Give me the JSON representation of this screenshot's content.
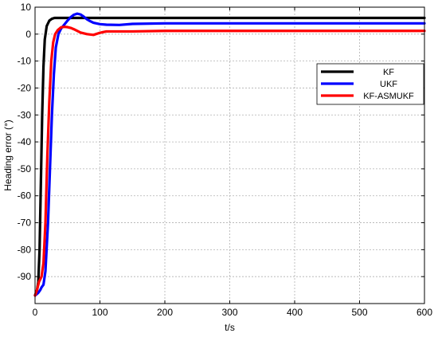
{
  "chart_data": {
    "type": "line",
    "title": "",
    "xlabel": "t/s",
    "ylabel": "Heading error (°)",
    "xlim": [
      0,
      600
    ],
    "ylim": [
      -100,
      10
    ],
    "xticks": [
      0,
      100,
      200,
      300,
      400,
      500,
      600
    ],
    "yticks": [
      10,
      0,
      -10,
      -20,
      -30,
      -40,
      -50,
      -60,
      -70,
      -80,
      -90
    ],
    "grid": true,
    "legend_position": "upper-right",
    "series": [
      {
        "name": "KF",
        "color": "#000000",
        "points": [
          [
            0,
            -97
          ],
          [
            3,
            -95
          ],
          [
            5,
            -92
          ],
          [
            7,
            -80
          ],
          [
            9,
            -55
          ],
          [
            11,
            -30
          ],
          [
            13,
            -12
          ],
          [
            15,
            -2
          ],
          [
            18,
            3
          ],
          [
            22,
            5
          ],
          [
            26,
            5.7
          ],
          [
            30,
            6
          ],
          [
            60,
            6
          ],
          [
            100,
            6
          ],
          [
            200,
            6
          ],
          [
            300,
            6
          ],
          [
            400,
            6
          ],
          [
            500,
            6
          ],
          [
            600,
            6
          ]
        ]
      },
      {
        "name": "UKF",
        "color": "#0000ff",
        "points": [
          [
            0,
            -97
          ],
          [
            5,
            -96
          ],
          [
            8,
            -95
          ],
          [
            10,
            -94
          ],
          [
            13,
            -93
          ],
          [
            16,
            -88
          ],
          [
            20,
            -70
          ],
          [
            23,
            -50
          ],
          [
            26,
            -30
          ],
          [
            29,
            -15
          ],
          [
            32,
            -5
          ],
          [
            36,
            0
          ],
          [
            40,
            2
          ],
          [
            45,
            3.5
          ],
          [
            50,
            5
          ],
          [
            55,
            6.3
          ],
          [
            60,
            7.2
          ],
          [
            65,
            7.6
          ],
          [
            70,
            7.3
          ],
          [
            75,
            6.5
          ],
          [
            80,
            5.5
          ],
          [
            85,
            4.8
          ],
          [
            90,
            4.2
          ],
          [
            100,
            3.7
          ],
          [
            110,
            3.5
          ],
          [
            130,
            3.4
          ],
          [
            150,
            3.8
          ],
          [
            200,
            4
          ],
          [
            300,
            4
          ],
          [
            400,
            4
          ],
          [
            500,
            4
          ],
          [
            600,
            4
          ]
        ]
      },
      {
        "name": "KF-ASMUKF",
        "color": "#ff0000",
        "points": [
          [
            0,
            -97
          ],
          [
            3,
            -95
          ],
          [
            6,
            -92
          ],
          [
            10,
            -90
          ],
          [
            13,
            -85
          ],
          [
            16,
            -70
          ],
          [
            19,
            -45
          ],
          [
            22,
            -25
          ],
          [
            25,
            -10
          ],
          [
            28,
            -3
          ],
          [
            31,
            0
          ],
          [
            35,
            1.5
          ],
          [
            40,
            2.5
          ],
          [
            45,
            2.7
          ],
          [
            50,
            2.6
          ],
          [
            55,
            2.3
          ],
          [
            60,
            1.8
          ],
          [
            70,
            0.6
          ],
          [
            80,
            0
          ],
          [
            90,
            -0.3
          ],
          [
            100,
            0.5
          ],
          [
            110,
            1
          ],
          [
            130,
            1
          ],
          [
            150,
            1
          ],
          [
            200,
            1.2
          ],
          [
            300,
            1.2
          ],
          [
            400,
            1.2
          ],
          [
            500,
            1.2
          ],
          [
            600,
            1.2
          ]
        ]
      }
    ]
  }
}
